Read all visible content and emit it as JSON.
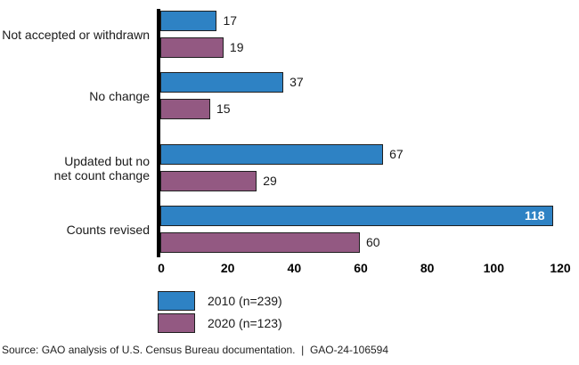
{
  "chart_data": {
    "type": "bar",
    "orientation": "horizontal",
    "title": "",
    "xlabel": "",
    "ylabel": "",
    "categories": [
      "Not accepted or withdrawn",
      "No change",
      "Updated but no net count change",
      "Counts revised"
    ],
    "category_lines": [
      [
        "Not accepted or withdrawn"
      ],
      [
        "No change"
      ],
      [
        "Updated but no",
        "net count change"
      ],
      [
        "Counts revised"
      ]
    ],
    "series": [
      {
        "name": "2010 (n=239)",
        "color": "#2e82c4",
        "values": [
          17,
          37,
          67,
          118
        ]
      },
      {
        "name": "2020 (n=123)",
        "color": "#935982",
        "values": [
          19,
          15,
          29,
          60
        ]
      }
    ],
    "xlim": [
      0,
      120
    ],
    "x_ticks": [
      0,
      20,
      40,
      60,
      80,
      100,
      120
    ],
    "grid": false,
    "legend_position": "bottom-left",
    "value_labels": "outside-end, except 118 shown bold white inside bar",
    "axis_line_color": "#000000",
    "bar_border_color": "#1f1f1f"
  },
  "source_line": "Source: GAO analysis of U.S. Census Bureau documentation.  |  GAO-24-106594"
}
